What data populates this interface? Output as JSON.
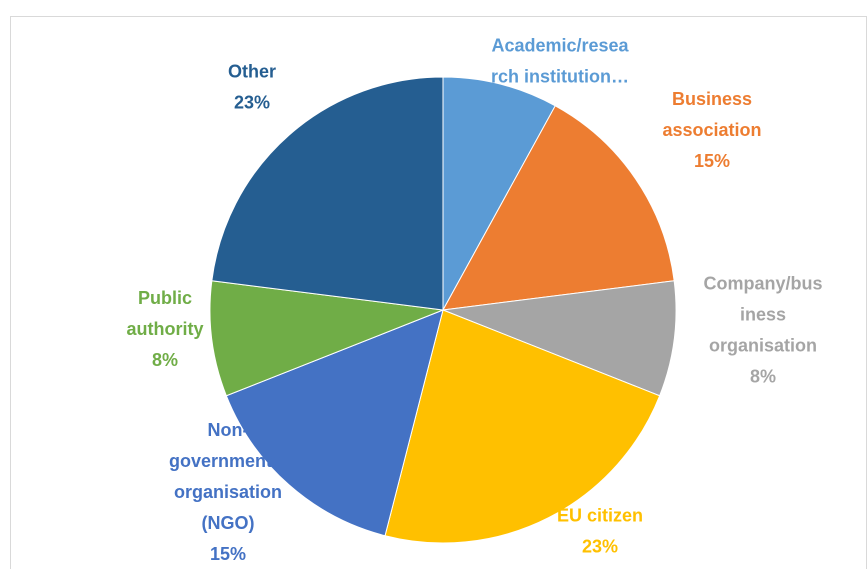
{
  "chart_data": {
    "type": "pie",
    "categories": [
      "Academic/resea\nrch institution…",
      "Business\nassociation",
      "Company/bus\niness\norganisation",
      "EU citizen",
      "Non-\ngovernmental\norganisation\n(NGO)",
      "Public\nauthority",
      "Other"
    ],
    "values": [
      8,
      15,
      8,
      23,
      15,
      8,
      23
    ],
    "value_labels": [
      null,
      "15%",
      "8%",
      "23%",
      "15%",
      "8%",
      "23%"
    ],
    "colors": [
      "#5b9bd5",
      "#ed7d31",
      "#a5a5a5",
      "#ffc000",
      "#4472c4",
      "#70ad47",
      "#255e91"
    ]
  }
}
